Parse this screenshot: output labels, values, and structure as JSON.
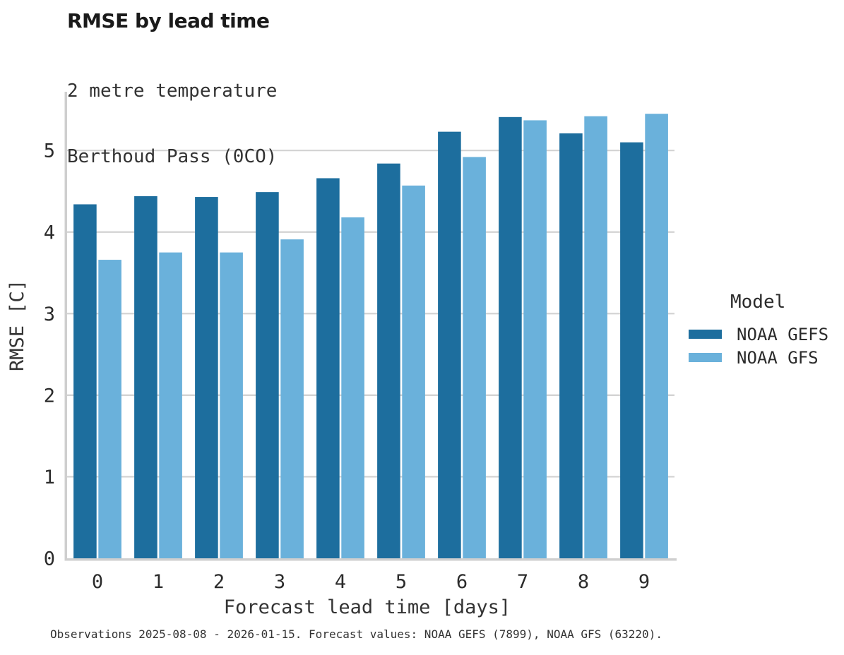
{
  "header": {
    "title": "RMSE by lead time",
    "subtitle_line1": "2 metre temperature",
    "subtitle_line2": "Berthoud Pass (0CO)"
  },
  "legend": {
    "title": "Model",
    "entries": [
      {
        "label": "NOAA GEFS",
        "color": "#1d6e9e"
      },
      {
        "label": "NOAA GFS",
        "color": "#6ab1db"
      }
    ]
  },
  "caption": "Observations 2025-08-08 - 2026-01-15. Forecast values: NOAA GEFS (7899), NOAA GFS (63220).",
  "chart_data": {
    "type": "bar",
    "title": "RMSE by lead time",
    "subtitle": [
      "2 metre temperature",
      "Berthoud Pass (0CO)"
    ],
    "xlabel": "Forecast lead time [days]",
    "ylabel": "RMSE [C]",
    "categories": [
      "0",
      "1",
      "2",
      "3",
      "4",
      "5",
      "6",
      "7",
      "8",
      "9"
    ],
    "series": [
      {
        "name": "NOAA GEFS",
        "color": "#1d6e9e",
        "values": [
          4.34,
          4.44,
          4.43,
          4.49,
          4.66,
          4.84,
          5.23,
          5.41,
          5.21,
          5.1
        ]
      },
      {
        "name": "NOAA GFS",
        "color": "#6ab1db",
        "values": [
          3.66,
          3.75,
          3.75,
          3.91,
          4.18,
          4.57,
          4.92,
          5.37,
          5.42,
          5.45
        ]
      }
    ],
    "ylim": [
      0,
      5.72
    ],
    "yticks": [
      0,
      1,
      2,
      3,
      4,
      5
    ],
    "grid": "horizontal",
    "legend_position": "right"
  },
  "colors": {
    "grid": "#d2d2d2",
    "axis": "#cfcfcf",
    "tick_text": "#2b2b2b",
    "label_text": "#333333"
  }
}
